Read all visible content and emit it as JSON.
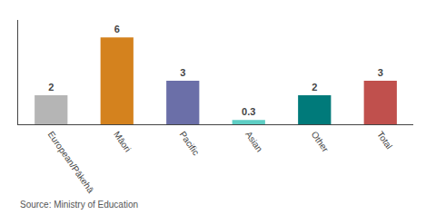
{
  "chart_data": {
    "type": "bar",
    "categories": [
      "European/Pākehā",
      "Māori",
      "Pacific",
      "Asian",
      "Other",
      "Total"
    ],
    "values": [
      2,
      6,
      3,
      0.3,
      2,
      3
    ],
    "colors": [
      "#b5b5b5",
      "#d4821e",
      "#6b6fa8",
      "#5ecec4",
      "#007a7a",
      "#c0504d"
    ],
    "ylim": [
      0,
      7.2
    ],
    "yticks": [],
    "grid": false,
    "data_labels": true,
    "tick_labels": "x",
    "annotations": [
      "Source: Ministry of Education"
    ]
  }
}
